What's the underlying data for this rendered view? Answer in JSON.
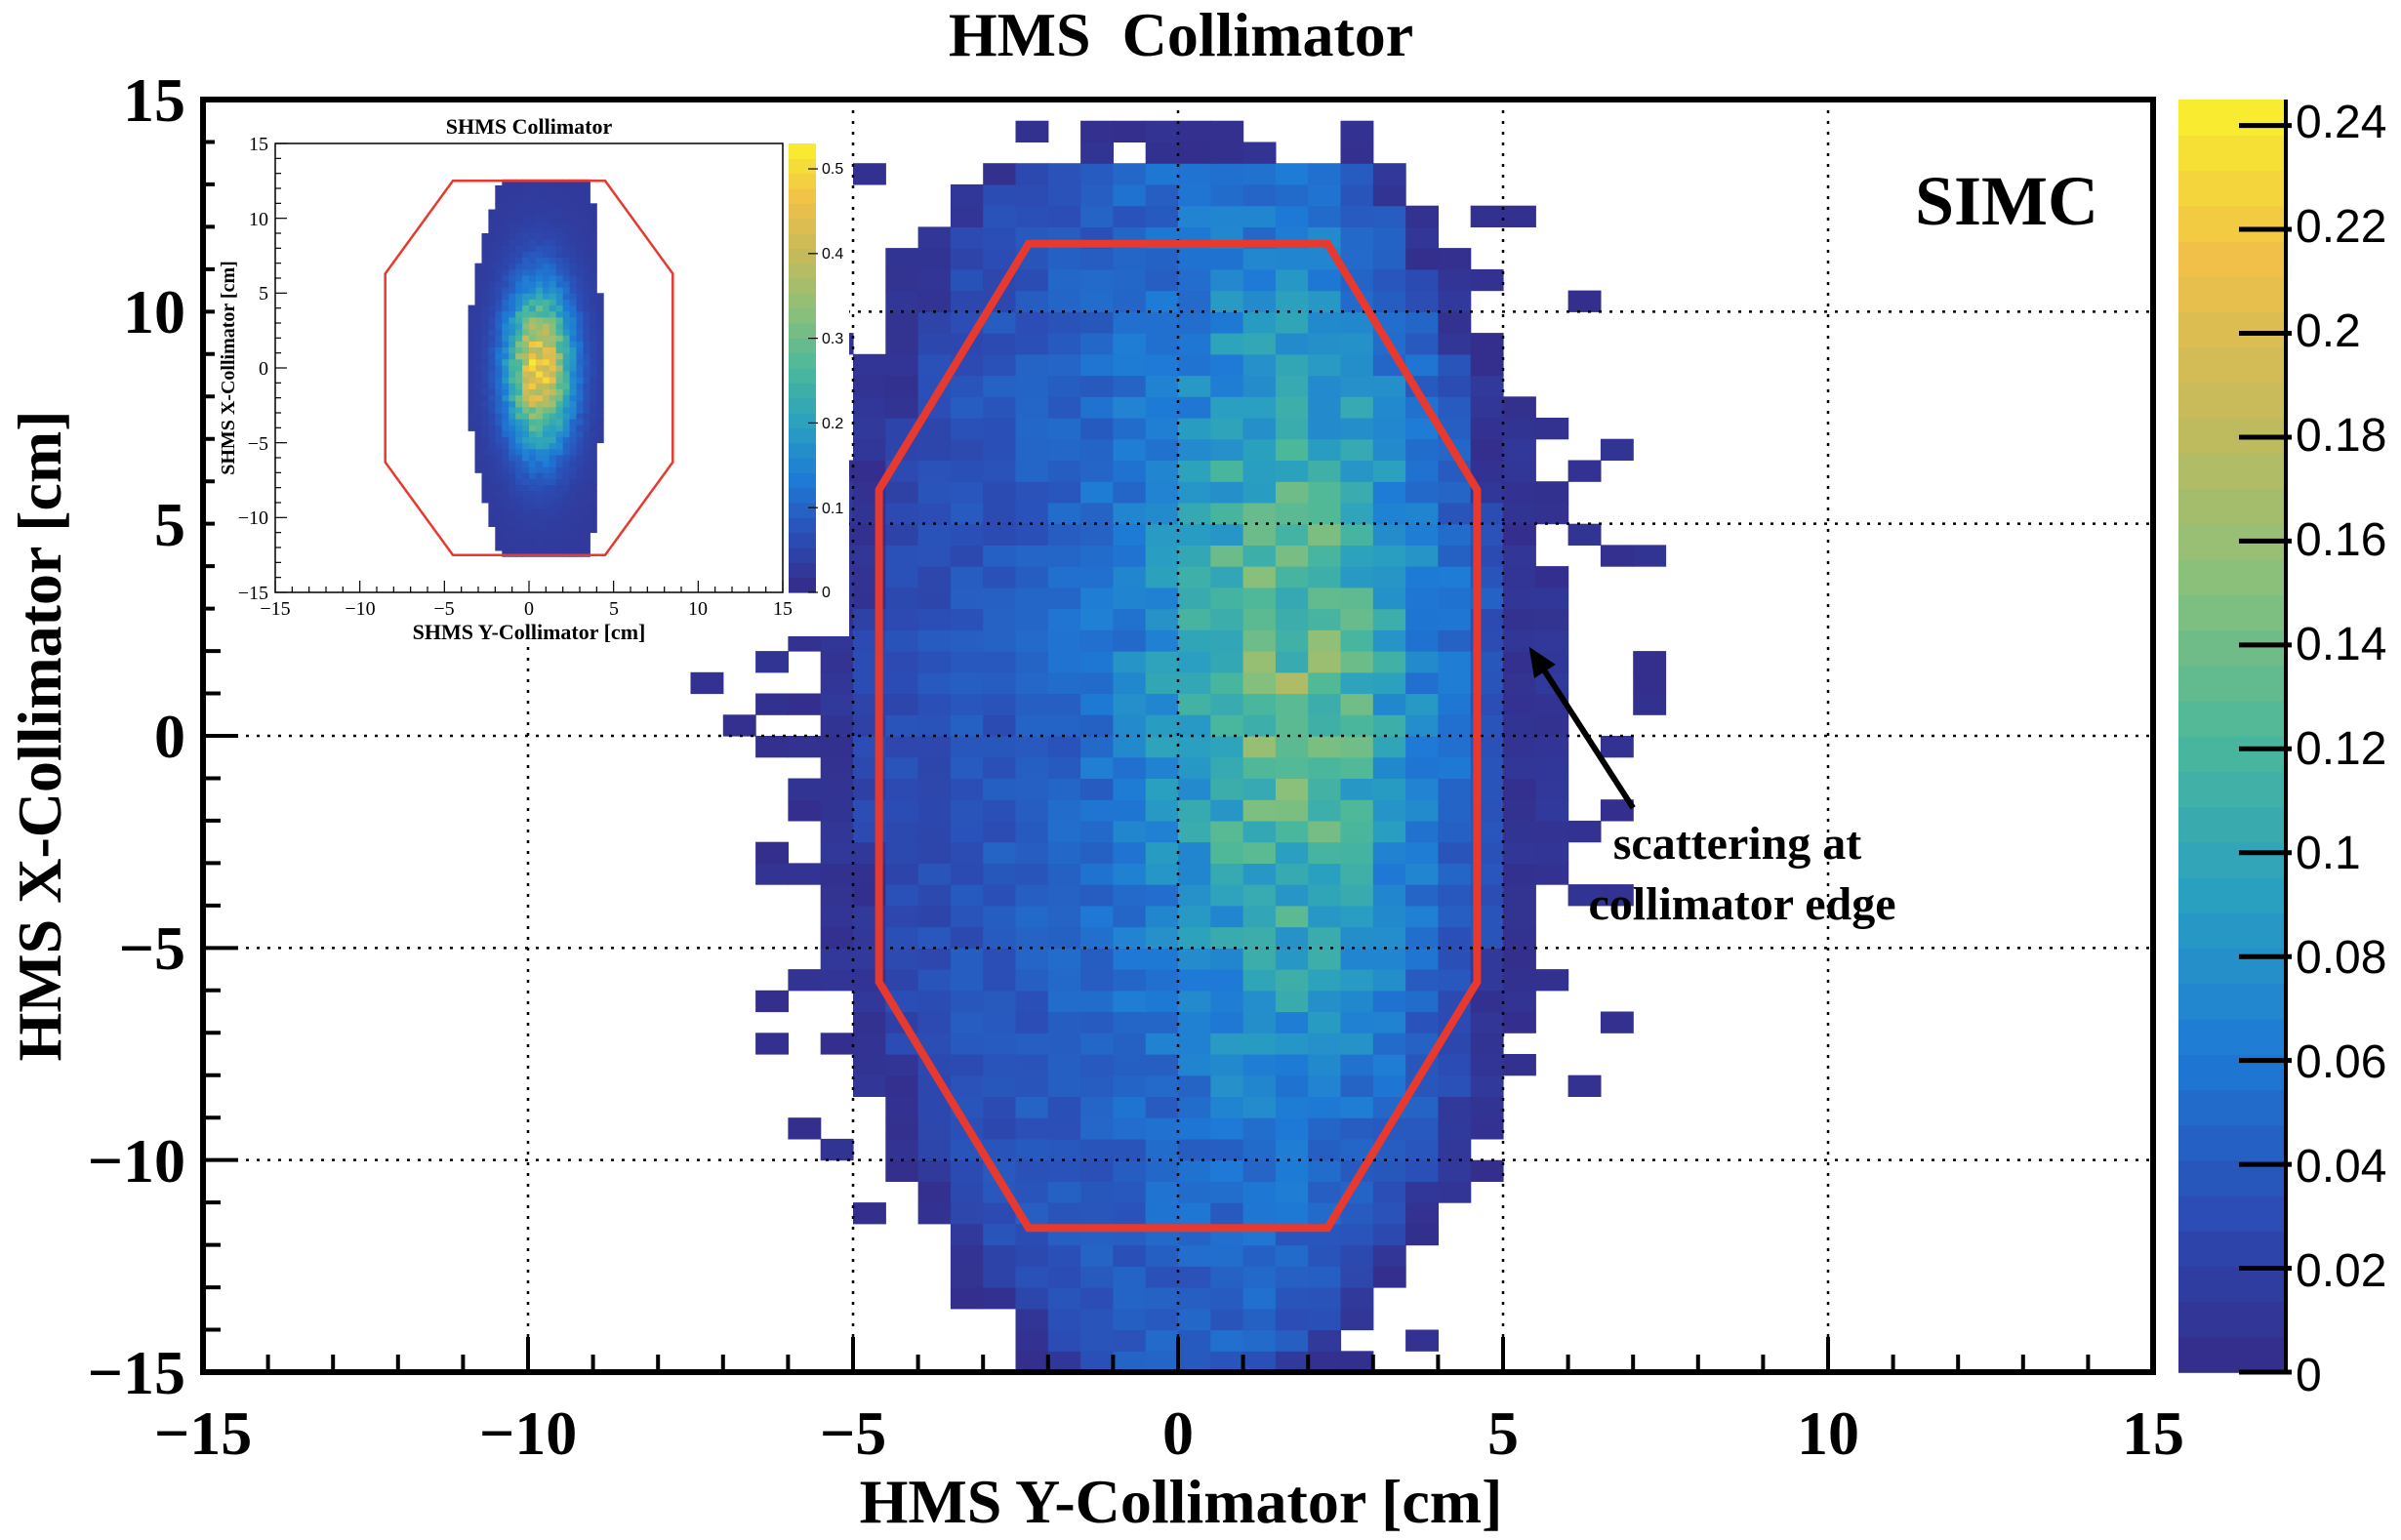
{
  "chart_data": [
    {
      "type": "heatmap",
      "title": "HMS  Collimator",
      "xlabel": "HMS Y-Collimator [cm]",
      "ylabel": "HMS X-Collimator [cm]",
      "xlim": [
        -15,
        15
      ],
      "ylim": [
        -15,
        15
      ],
      "x_ticks": [
        "−15",
        "−10",
        "−5",
        "0",
        "5",
        "10",
        "15"
      ],
      "y_ticks": [
        "−15",
        "−10",
        "−5",
        "0",
        "5",
        "10",
        "15"
      ],
      "x_tick_values": [
        -15,
        -10,
        -5,
        0,
        5,
        10,
        15
      ],
      "y_tick_values": [
        -15,
        -10,
        -5,
        0,
        5,
        10,
        15
      ],
      "grid": true,
      "label": "SIMC",
      "annotation": {
        "line1": "scattering at",
        "line2": "collimator edge",
        "arrow_tip": [
          5.4,
          2.1
        ],
        "arrow_tail": [
          7.0,
          -1.7
        ]
      },
      "colorbar": {
        "range": [
          0,
          0.245
        ],
        "ticks": [
          "0",
          "0.02",
          "0.04",
          "0.06",
          "0.08",
          "0.1",
          "0.12",
          "0.14",
          "0.16",
          "0.18",
          "0.2",
          "0.22",
          "0.24"
        ],
        "tick_values": [
          0,
          0.02,
          0.04,
          0.06,
          0.08,
          0.1,
          0.12,
          0.14,
          0.16,
          0.18,
          0.2,
          0.22,
          0.24
        ]
      },
      "collimator_outline": [
        [
          -2.3,
          11.6
        ],
        [
          2.3,
          11.6
        ],
        [
          4.6,
          5.8
        ],
        [
          4.6,
          -5.8
        ],
        [
          2.3,
          -11.6
        ],
        [
          -2.3,
          -11.6
        ],
        [
          -4.6,
          -5.8
        ],
        [
          -4.6,
          5.8
        ]
      ],
      "distribution": {
        "x_range": [
          -5.5,
          5.5
        ],
        "y_range": [
          -15,
          13.5
        ],
        "peak_y": 1.5,
        "peak_value": 0.24,
        "bin": 0.5
      },
      "colors": {
        "outline": "#e8392f",
        "palette": [
          "#352a87",
          "#2b4db5",
          "#1e7ad6",
          "#2aa0c0",
          "#4cb89a",
          "#8bc07a",
          "#c4ba5c",
          "#f0c048",
          "#f9f02d"
        ]
      }
    },
    {
      "type": "heatmap",
      "title": "SHMS Collimator",
      "xlabel": "SHMS Y-Collimator [cm]",
      "ylabel": "SHMS X-Collimator [cm]",
      "xlim": [
        -15,
        15
      ],
      "ylim": [
        -15,
        15
      ],
      "x_ticks": [
        "−15",
        "−10",
        "−5",
        "0",
        "5",
        "10",
        "15"
      ],
      "y_ticks": [
        "−15",
        "−10",
        "−5",
        "0",
        "5",
        "10",
        "15"
      ],
      "x_tick_values": [
        -15,
        -10,
        -5,
        0,
        5,
        10,
        15
      ],
      "y_tick_values": [
        -15,
        -10,
        -5,
        0,
        5,
        10,
        15
      ],
      "colorbar": {
        "range": [
          0,
          0.53
        ],
        "ticks": [
          "0",
          "0.1",
          "0.2",
          "0.3",
          "0.4",
          "0.5"
        ],
        "tick_values": [
          0,
          0.1,
          0.2,
          0.3,
          0.4,
          0.5
        ]
      },
      "collimator_outline": [
        [
          -4.5,
          12.5
        ],
        [
          4.5,
          12.5
        ],
        [
          8.5,
          6.3
        ],
        [
          8.5,
          -6.3
        ],
        [
          4.5,
          -12.5
        ],
        [
          -4.5,
          -12.5
        ],
        [
          -8.5,
          -6.3
        ],
        [
          -8.5,
          6.3
        ]
      ],
      "distribution": {
        "x_range": [
          -3.5,
          4.5
        ],
        "y_range": [
          -12.5,
          12.5
        ],
        "peak_x": 0.5,
        "peak_y": 0.0,
        "peak_value": 0.5,
        "bin": 0.4
      }
    }
  ]
}
